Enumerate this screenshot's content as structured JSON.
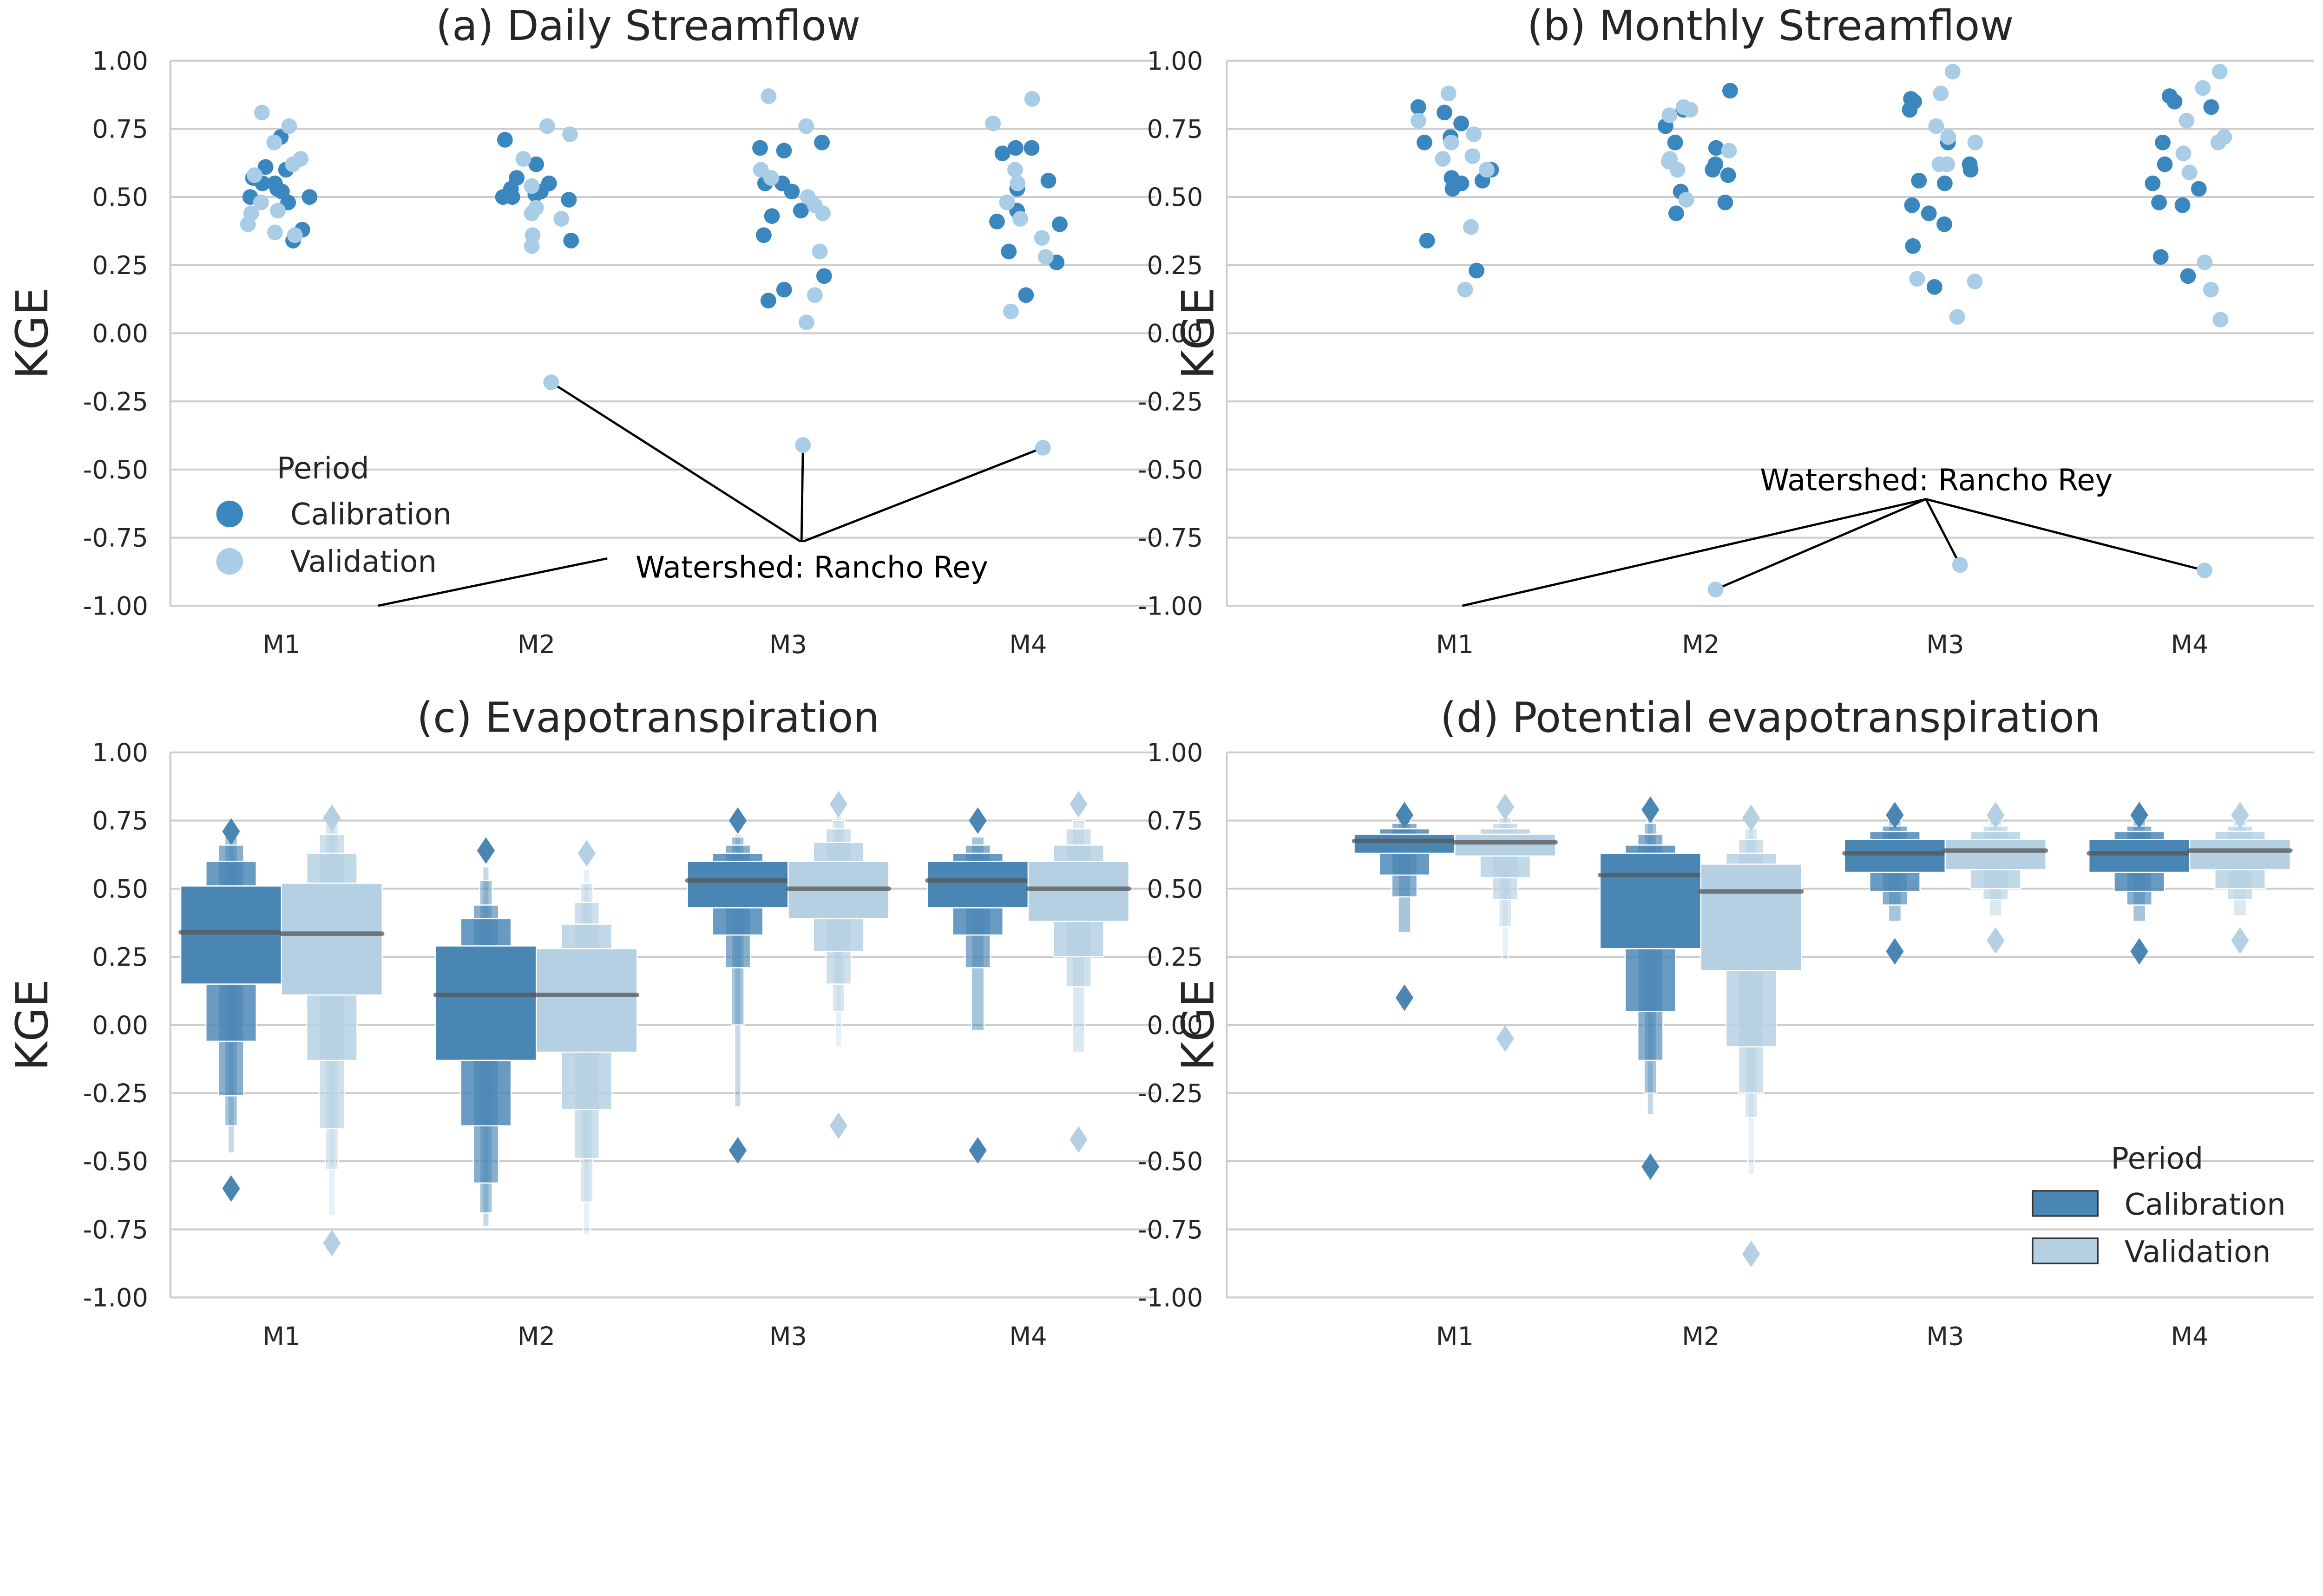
{
  "colors": {
    "calibration": "#3a87c0",
    "validation": "#a9cde6",
    "box_calibration": "#4a86b4",
    "box_validation": "#b4d0e2",
    "median": "#555555",
    "grid": "#cccccc"
  },
  "legend": {
    "title": "Period",
    "entries": [
      "Calibration",
      "Validation"
    ]
  },
  "chart_data": [
    {
      "type": "scatter",
      "title": "(a) Daily Streamflow",
      "ylabel": "KGE",
      "xlabel": "",
      "ylim": [
        -1.0,
        1.0
      ],
      "yticks": [
        "1.00",
        "0.75",
        "0.50",
        "0.25",
        "0.00",
        "-0.25",
        "-0.50",
        "-0.75",
        "-1.00"
      ],
      "categories": [
        "M1",
        "M2",
        "M3",
        "M4"
      ],
      "grid": true,
      "legend_placement": "lower-left",
      "series": [
        {
          "name": "Calibration",
          "values": [
            [
              0.72,
              0.6,
              0.57,
              0.55,
              0.53,
              0.52,
              0.5,
              0.5,
              0.48,
              0.55,
              0.61,
              0.38,
              0.34
            ],
            [
              0.71,
              0.62,
              0.57,
              0.55,
              0.53,
              0.52,
              0.51,
              0.5,
              0.5,
              0.49,
              0.34
            ],
            [
              0.68,
              0.67,
              0.7,
              0.55,
              0.55,
              0.52,
              0.45,
              0.43,
              0.36,
              0.21,
              0.16,
              0.12
            ],
            [
              0.68,
              0.68,
              0.66,
              0.56,
              0.53,
              0.45,
              0.41,
              0.4,
              0.3,
              0.26,
              0.14
            ]
          ]
        },
        {
          "name": "Validation",
          "values": [
            [
              0.81,
              0.76,
              0.7,
              0.64,
              0.62,
              0.58,
              0.48,
              0.45,
              0.44,
              0.4,
              0.37,
              0.36
            ],
            [
              0.76,
              0.73,
              0.64,
              0.54,
              0.46,
              0.44,
              0.42,
              0.36,
              0.32,
              -0.18
            ],
            [
              0.87,
              0.76,
              0.6,
              0.57,
              0.5,
              0.47,
              0.44,
              0.3,
              0.14,
              0.04,
              -0.41
            ],
            [
              0.86,
              0.77,
              0.6,
              0.55,
              0.48,
              0.42,
              0.35,
              0.28,
              0.08,
              -0.42
            ]
          ]
        }
      ],
      "annotation": {
        "text": "Watershed: Rancho Rey",
        "targets": [
          [
            "M1",
            -1.0
          ],
          [
            "M2",
            -0.18
          ],
          [
            "M3",
            -0.41
          ],
          [
            "M4",
            -0.42
          ]
        ]
      }
    },
    {
      "type": "scatter",
      "title": "(b) Monthly Streamflow",
      "ylabel": "KGE",
      "xlabel": "",
      "ylim": [
        -1.0,
        1.0
      ],
      "yticks": [
        "1.00",
        "0.75",
        "0.50",
        "0.25",
        "0.00",
        "-0.25",
        "-0.50",
        "-0.75",
        "-1.00"
      ],
      "categories": [
        "M1",
        "M2",
        "M3",
        "M4"
      ],
      "grid": true,
      "series": [
        {
          "name": "Calibration",
          "values": [
            [
              0.83,
              0.81,
              0.77,
              0.72,
              0.7,
              0.6,
              0.57,
              0.56,
              0.55,
              0.53,
              0.34,
              0.23
            ],
            [
              0.89,
              0.82,
              0.76,
              0.7,
              0.68,
              0.62,
              0.6,
              0.58,
              0.52,
              0.48,
              0.44
            ],
            [
              0.86,
              0.85,
              0.82,
              0.7,
              0.62,
              0.6,
              0.56,
              0.55,
              0.47,
              0.44,
              0.4,
              0.32,
              0.17
            ],
            [
              0.87,
              0.85,
              0.83,
              0.7,
              0.62,
              0.55,
              0.53,
              0.48,
              0.47,
              0.28,
              0.21
            ]
          ]
        },
        {
          "name": "Validation",
          "values": [
            [
              0.88,
              0.78,
              0.73,
              0.7,
              0.65,
              0.64,
              0.6,
              0.39,
              0.16
            ],
            [
              0.83,
              0.82,
              0.8,
              0.67,
              0.64,
              0.63,
              0.6,
              0.49,
              -0.94
            ],
            [
              0.96,
              0.88,
              0.76,
              0.72,
              0.7,
              0.62,
              0.62,
              0.2,
              0.19,
              0.06,
              -0.85
            ],
            [
              0.96,
              0.9,
              0.78,
              0.72,
              0.7,
              0.66,
              0.59,
              0.26,
              0.16,
              0.05,
              -0.87
            ]
          ]
        }
      ],
      "annotation": {
        "text": "Watershed: Rancho Rey",
        "targets": [
          [
            "M1",
            -1.0
          ],
          [
            "M2",
            -0.94
          ],
          [
            "M3",
            -0.85
          ],
          [
            "M4",
            -0.87
          ]
        ]
      }
    },
    {
      "type": "boxen",
      "title": "(c) Evapotranspiration",
      "ylabel": "KGE",
      "xlabel": "",
      "ylim": [
        -1.0,
        1.0
      ],
      "yticks": [
        "1.00",
        "0.75",
        "0.50",
        "0.25",
        "0.00",
        "-0.25",
        "-0.50",
        "-0.75",
        "-1.00"
      ],
      "categories": [
        "M1",
        "M2",
        "M3",
        "M4"
      ],
      "grid": true,
      "series": [
        {
          "name": "Calibration",
          "groups": [
            {
              "median": 0.34,
              "levels": [
                [
                  0.15,
                  0.51
                ],
                [
                  -0.06,
                  0.6
                ],
                [
                  -0.26,
                  0.66
                ],
                [
                  -0.37,
                  0.69
                ],
                [
                  -0.47,
                  0.7
                ]
              ],
              "outliers": [
                0.71,
                -0.6
              ]
            },
            {
              "median": 0.11,
              "levels": [
                [
                  -0.13,
                  0.29
                ],
                [
                  -0.37,
                  0.39
                ],
                [
                  -0.58,
                  0.44
                ],
                [
                  -0.69,
                  0.53
                ],
                [
                  -0.74,
                  0.58
                ]
              ],
              "outliers": [
                0.64
              ]
            },
            {
              "median": 0.53,
              "levels": [
                [
                  0.43,
                  0.6
                ],
                [
                  0.33,
                  0.63
                ],
                [
                  0.21,
                  0.66
                ],
                [
                  0.0,
                  0.69
                ],
                [
                  -0.3,
                  0.7
                ]
              ],
              "outliers": [
                0.75,
                -0.46
              ]
            },
            {
              "median": 0.53,
              "levels": [
                [
                  0.43,
                  0.6
                ],
                [
                  0.33,
                  0.63
                ],
                [
                  0.21,
                  0.66
                ],
                [
                  -0.02,
                  0.69
                ]
              ],
              "outliers": [
                0.75,
                -0.46
              ]
            }
          ]
        },
        {
          "name": "Validation",
          "groups": [
            {
              "median": 0.335,
              "levels": [
                [
                  0.11,
                  0.52
                ],
                [
                  -0.13,
                  0.63
                ],
                [
                  -0.38,
                  0.7
                ],
                [
                  -0.53,
                  0.74
                ],
                [
                  -0.7,
                  0.75
                ]
              ],
              "outliers": [
                0.76,
                -0.8
              ]
            },
            {
              "median": 0.11,
              "levels": [
                [
                  -0.1,
                  0.28
                ],
                [
                  -0.31,
                  0.37
                ],
                [
                  -0.49,
                  0.45
                ],
                [
                  -0.65,
                  0.52
                ],
                [
                  -0.77,
                  0.57
                ]
              ],
              "outliers": [
                0.63
              ]
            },
            {
              "median": 0.5,
              "levels": [
                [
                  0.39,
                  0.6
                ],
                [
                  0.27,
                  0.67
                ],
                [
                  0.15,
                  0.72
                ],
                [
                  0.05,
                  0.75
                ],
                [
                  -0.08,
                  0.77
                ]
              ],
              "outliers": [
                0.81,
                -0.37
              ]
            },
            {
              "median": 0.5,
              "levels": [
                [
                  0.38,
                  0.6
                ],
                [
                  0.25,
                  0.66
                ],
                [
                  0.14,
                  0.72
                ],
                [
                  -0.1,
                  0.75
                ]
              ],
              "outliers": [
                0.81,
                -0.42
              ]
            }
          ]
        }
      ]
    },
    {
      "type": "boxen",
      "title": "(d) Potential evapotranspiration",
      "ylabel": "KGE",
      "xlabel": "",
      "ylim": [
        -1.0,
        1.0
      ],
      "yticks": [
        "1.00",
        "0.75",
        "0.50",
        "0.25",
        "0.00",
        "-0.25",
        "-0.50",
        "-0.75",
        "-1.00"
      ],
      "categories": [
        "M1",
        "M2",
        "M3",
        "M4"
      ],
      "grid": true,
      "legend_placement": "lower-right",
      "series": [
        {
          "name": "Calibration",
          "groups": [
            {
              "median": 0.675,
              "levels": [
                [
                  0.63,
                  0.7
                ],
                [
                  0.55,
                  0.72
                ],
                [
                  0.47,
                  0.74
                ],
                [
                  0.34,
                  0.75
                ]
              ],
              "outliers": [
                0.77,
                0.1
              ]
            },
            {
              "median": 0.55,
              "levels": [
                [
                  0.28,
                  0.63
                ],
                [
                  0.05,
                  0.66
                ],
                [
                  -0.13,
                  0.7
                ],
                [
                  -0.25,
                  0.74
                ],
                [
                  -0.33,
                  0.77
                ]
              ],
              "outliers": [
                0.79,
                -0.52
              ]
            },
            {
              "median": 0.63,
              "levels": [
                [
                  0.56,
                  0.68
                ],
                [
                  0.49,
                  0.71
                ],
                [
                  0.44,
                  0.73
                ],
                [
                  0.38,
                  0.75
                ]
              ],
              "outliers": [
                0.77,
                0.27
              ]
            },
            {
              "median": 0.63,
              "levels": [
                [
                  0.56,
                  0.68
                ],
                [
                  0.49,
                  0.71
                ],
                [
                  0.44,
                  0.73
                ],
                [
                  0.38,
                  0.75
                ]
              ],
              "outliers": [
                0.77,
                0.27
              ]
            }
          ]
        },
        {
          "name": "Validation",
          "groups": [
            {
              "median": 0.67,
              "levels": [
                [
                  0.62,
                  0.7
                ],
                [
                  0.54,
                  0.72
                ],
                [
                  0.46,
                  0.74
                ],
                [
                  0.36,
                  0.76
                ],
                [
                  0.24,
                  0.77
                ]
              ],
              "outliers": [
                0.8,
                -0.05
              ]
            },
            {
              "median": 0.49,
              "levels": [
                [
                  0.2,
                  0.59
                ],
                [
                  -0.08,
                  0.63
                ],
                [
                  -0.25,
                  0.68
                ],
                [
                  -0.34,
                  0.72
                ],
                [
                  -0.55,
                  0.74
                ]
              ],
              "outliers": [
                0.76,
                -0.84
              ]
            },
            {
              "median": 0.64,
              "levels": [
                [
                  0.57,
                  0.68
                ],
                [
                  0.5,
                  0.71
                ],
                [
                  0.46,
                  0.73
                ],
                [
                  0.4,
                  0.75
                ]
              ],
              "outliers": [
                0.77,
                0.31
              ]
            },
            {
              "median": 0.64,
              "levels": [
                [
                  0.57,
                  0.68
                ],
                [
                  0.5,
                  0.71
                ],
                [
                  0.46,
                  0.73
                ],
                [
                  0.4,
                  0.75
                ]
              ],
              "outliers": [
                0.77,
                0.31
              ]
            }
          ]
        }
      ]
    }
  ]
}
